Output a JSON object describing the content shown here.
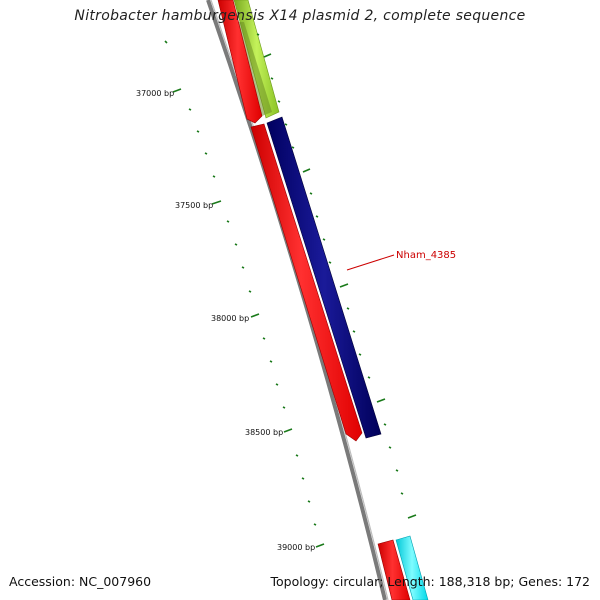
{
  "title": "Nitrobacter hamburgensis X14 plasmid 2, complete sequence",
  "footer": {
    "accession": "Accession: NC_007960",
    "summary": "Topology: circular; Length: 188,318 bp; Genes: 172"
  },
  "scale": {
    "tick_labels": [
      "37000 bp",
      "37500 bp",
      "38000 bp",
      "38500 bp",
      "39000 bp"
    ],
    "tick_color": "#1a7a1a"
  },
  "genes": [
    {
      "strand": "forward",
      "color": "#a6e62e"
    },
    {
      "strand": "reverse",
      "color": "#ff0000"
    },
    {
      "strand": "reverse",
      "color": "#ff0000"
    },
    {
      "strand": "forward",
      "color": "#000080",
      "label": "Nham_4385",
      "label_color": "#cc0000"
    },
    {
      "strand": "reverse",
      "color": "#ff0000"
    },
    {
      "strand": "forward",
      "color": "#00ffff"
    }
  ],
  "backbone_color": "#888888"
}
